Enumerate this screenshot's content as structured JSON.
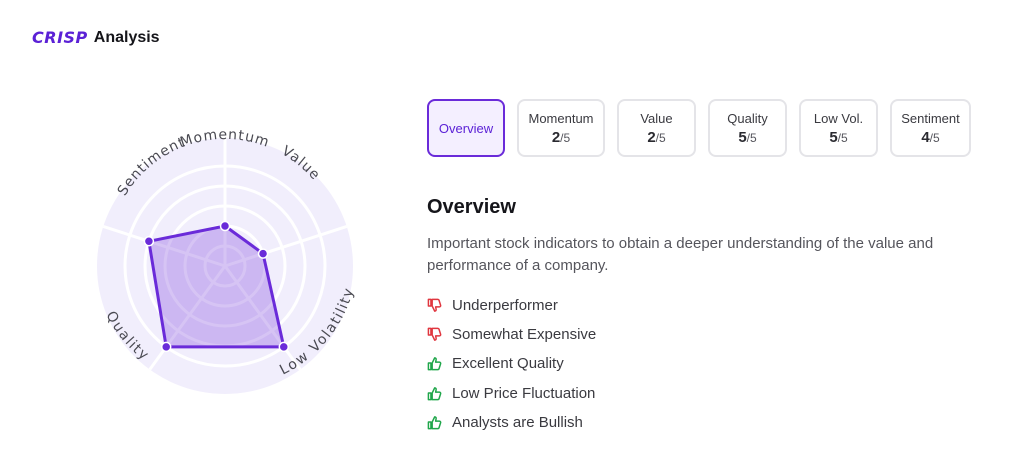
{
  "brand": {
    "logo_text": "CRISP",
    "title": "Analysis",
    "color": "#5b21d6"
  },
  "radar": {
    "axes": [
      "Momentum",
      "Value",
      "Quality",
      "Low Volatility",
      "Sentiment"
    ],
    "max": 5,
    "values": [
      2,
      2,
      5,
      5,
      4
    ],
    "color": "#6a2bd9"
  },
  "tabs": [
    {
      "label": "Overview",
      "active": true
    },
    {
      "label": "Momentum",
      "score": "2",
      "denominator": "/5"
    },
    {
      "label": "Value",
      "score": "2",
      "denominator": "/5"
    },
    {
      "label": "Quality",
      "score": "5",
      "denominator": "/5"
    },
    {
      "label": "Low Vol.",
      "score": "5",
      "denominator": "/5"
    },
    {
      "label": "Sentiment",
      "score": "4",
      "denominator": "/5"
    }
  ],
  "detail": {
    "title": "Overview",
    "description": "Important stock indicators to obtain a deeper understanding of the value and performance of a company.",
    "indicators": [
      {
        "text": "Underperformer",
        "sentiment": "negative",
        "icon": "thumbs-down-icon"
      },
      {
        "text": "Somewhat Expensive",
        "sentiment": "negative",
        "icon": "thumbs-down-icon"
      },
      {
        "text": "Excellent Quality",
        "sentiment": "positive",
        "icon": "thumbs-up-icon"
      },
      {
        "text": "Low Price Fluctuation",
        "sentiment": "positive",
        "icon": "thumbs-up-icon"
      },
      {
        "text": "Analysts are Bullish",
        "sentiment": "positive",
        "icon": "thumbs-up-icon"
      }
    ],
    "colors": {
      "negative": "#e0363f",
      "positive": "#1fa64a"
    }
  }
}
